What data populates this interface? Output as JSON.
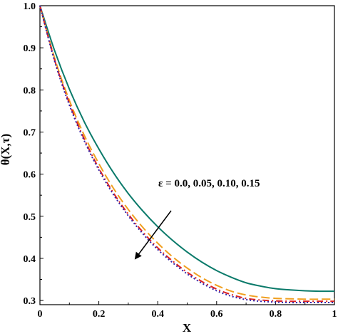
{
  "chart_data": {
    "type": "line",
    "xlabel": "X",
    "ylabel": "θ(X,τ)",
    "xlim": [
      0,
      1
    ],
    "ylim": [
      0.29,
      1.0
    ],
    "x_ticks": [
      "0",
      "0.2",
      "0.4",
      "0.6",
      "0.8",
      "1"
    ],
    "y_ticks": [
      "0.3",
      "0.4",
      "0.5",
      "0.6",
      "0.7",
      "0.8",
      "0.9",
      "1.0"
    ],
    "grid": false,
    "annotation": "ε = 0.0, 0.05, 0.10, 0.15",
    "x": [
      0,
      0.05,
      0.1,
      0.15,
      0.2,
      0.25,
      0.3,
      0.35,
      0.4,
      0.45,
      0.5,
      0.55,
      0.6,
      0.65,
      0.7,
      0.75,
      0.8,
      0.85,
      0.9,
      0.95,
      1.0
    ],
    "series": [
      {
        "color": "#0a7a6a",
        "dash": "solid",
        "values": [
          1.0,
          0.893,
          0.802,
          0.725,
          0.66,
          0.603,
          0.554,
          0.512,
          0.475,
          0.443,
          0.415,
          0.391,
          0.371,
          0.355,
          0.342,
          0.334,
          0.328,
          0.325,
          0.323,
          0.322,
          0.322
        ]
      },
      {
        "color": "#f0a020",
        "dash": "long-dash",
        "values": [
          1.0,
          0.875,
          0.775,
          0.693,
          0.625,
          0.566,
          0.516,
          0.473,
          0.436,
          0.404,
          0.377,
          0.354,
          0.336,
          0.322,
          0.313,
          0.308,
          0.305,
          0.304,
          0.303,
          0.303,
          0.303
        ]
      },
      {
        "color": "#dd2222",
        "dash": "dash-dot",
        "values": [
          1.0,
          0.871,
          0.768,
          0.684,
          0.614,
          0.555,
          0.505,
          0.462,
          0.425,
          0.394,
          0.367,
          0.345,
          0.327,
          0.314,
          0.305,
          0.301,
          0.299,
          0.298,
          0.298,
          0.298,
          0.298
        ]
      },
      {
        "color": "#3322aa",
        "dash": "dotted",
        "values": [
          1.0,
          0.868,
          0.764,
          0.68,
          0.61,
          0.551,
          0.501,
          0.458,
          0.421,
          0.39,
          0.363,
          0.341,
          0.323,
          0.31,
          0.302,
          0.298,
          0.296,
          0.295,
          0.295,
          0.295,
          0.295
        ]
      }
    ]
  }
}
